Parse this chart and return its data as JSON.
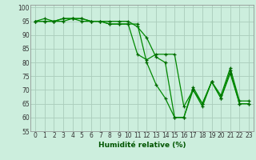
{
  "xlabel": "Humidité relative (%)",
  "background_color": "#cceedd",
  "grid_color": "#aaccbb",
  "line_color": "#008800",
  "marker_color": "#006600",
  "xlim": [
    -0.5,
    23.5
  ],
  "ylim": [
    55,
    101
  ],
  "yticks": [
    55,
    60,
    65,
    70,
    75,
    80,
    85,
    90,
    95,
    100
  ],
  "xticks": [
    0,
    1,
    2,
    3,
    4,
    5,
    6,
    7,
    8,
    9,
    10,
    11,
    12,
    13,
    14,
    15,
    16,
    17,
    18,
    19,
    20,
    21,
    22,
    23
  ],
  "series": [
    [
      95,
      96,
      95,
      95,
      96,
      96,
      95,
      95,
      95,
      95,
      95,
      93,
      89,
      82,
      80,
      60,
      60,
      71,
      65,
      73,
      68,
      78,
      66,
      66
    ],
    [
      95,
      95,
      95,
      96,
      96,
      95,
      95,
      95,
      94,
      94,
      94,
      94,
      80,
      72,
      67,
      60,
      60,
      70,
      65,
      73,
      67,
      77,
      65,
      65
    ],
    [
      95,
      95,
      95,
      96,
      96,
      96,
      95,
      95,
      94,
      94,
      94,
      83,
      81,
      83,
      83,
      83,
      64,
      70,
      64,
      73,
      67,
      76,
      65,
      65
    ]
  ],
  "xlabel_color": "#005500",
  "tick_color": "#333333",
  "tick_fontsize": 5.5,
  "xlabel_fontsize": 6.5
}
